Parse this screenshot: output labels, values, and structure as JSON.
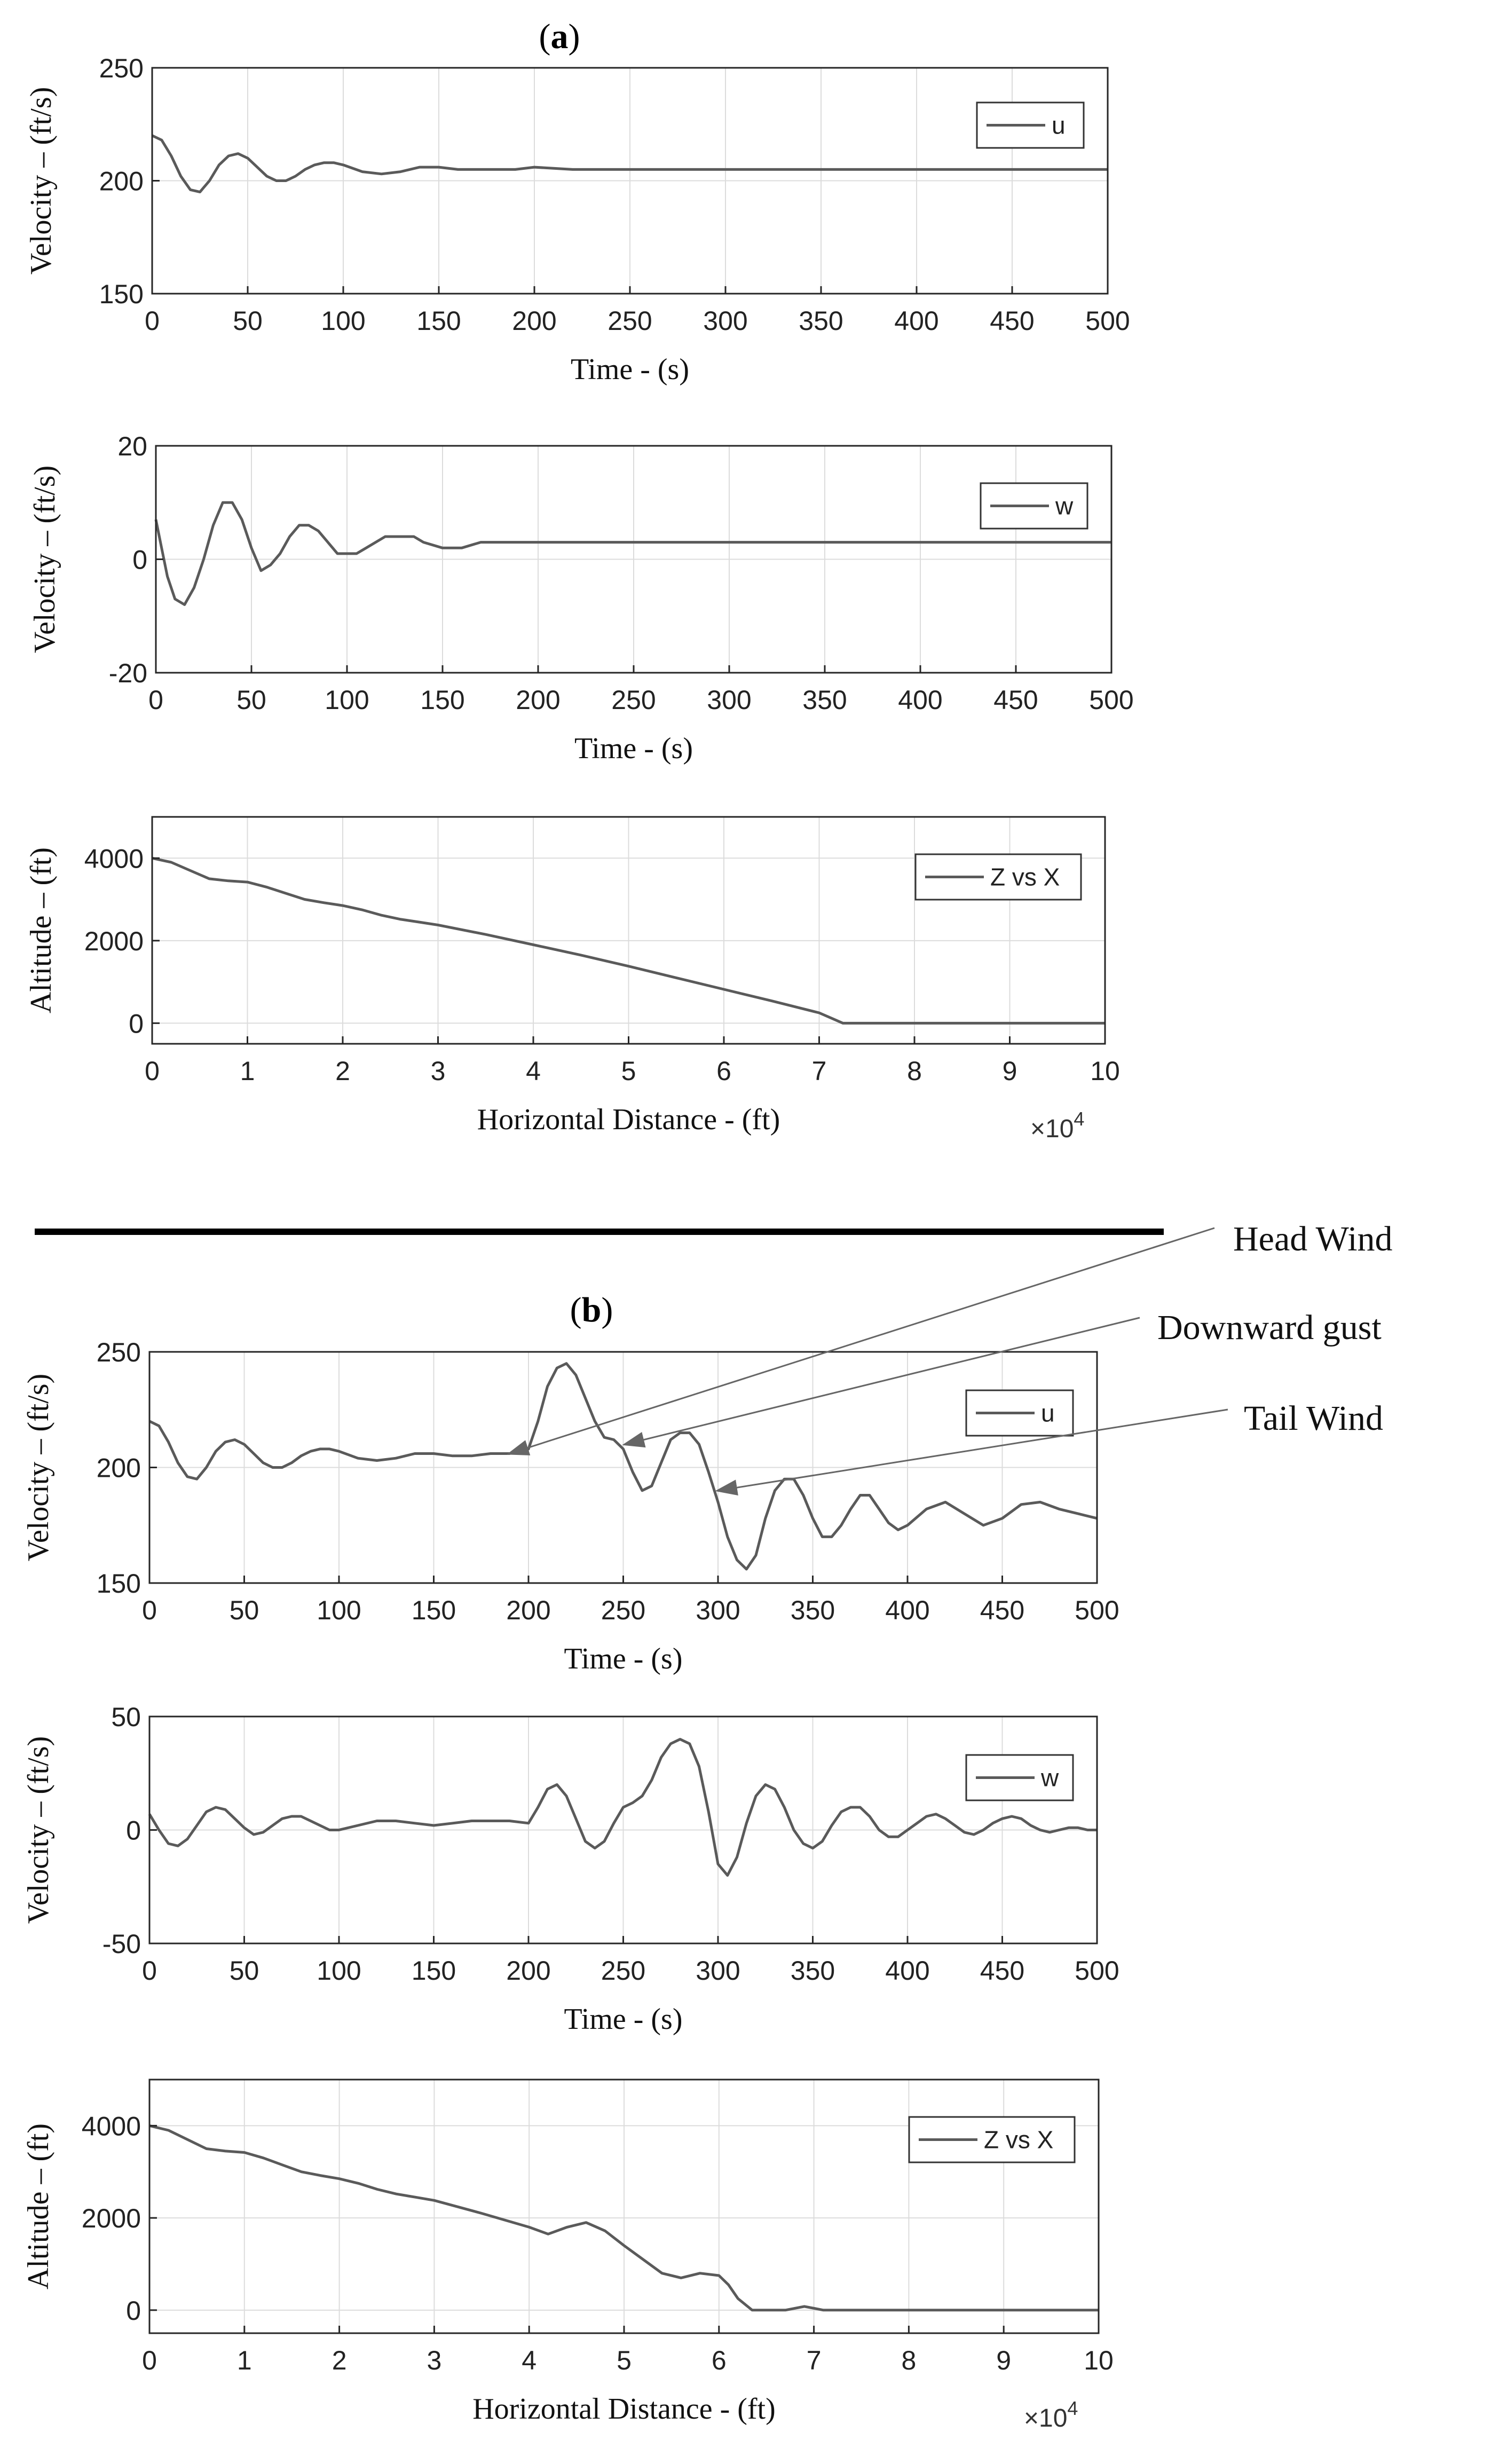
{
  "figure": {
    "panel_a_label": "a",
    "panel_b_label": "b",
    "annotations": [
      {
        "text": "Head Wind",
        "target_x": 190,
        "target_y": 206
      },
      {
        "text": "Downward gust",
        "target_x": 251,
        "target_y": 210
      },
      {
        "text": "Tail Wind",
        "target_x": 300,
        "target_y": 190
      }
    ],
    "colors": {
      "line": "#5a5a5a",
      "axis": "#262626",
      "grid": "#dcdcdc",
      "divider": "#000000"
    }
  },
  "chart_data": [
    {
      "panel": "a",
      "type": "line",
      "title": "",
      "xlabel": "Time - (s)",
      "ylabel": "Velocity – (ft/s)",
      "xlim": [
        0,
        500
      ],
      "ylim": [
        150,
        250
      ],
      "xticks": [
        0,
        50,
        100,
        150,
        200,
        250,
        300,
        350,
        400,
        450,
        500
      ],
      "yticks": [
        150,
        200,
        250
      ],
      "grid": true,
      "legend_position": "top-right",
      "exponent_label": "",
      "series": [
        {
          "name": "u",
          "x": [
            0,
            5,
            10,
            15,
            20,
            25,
            30,
            35,
            40,
            45,
            50,
            55,
            60,
            65,
            70,
            75,
            80,
            85,
            90,
            95,
            100,
            110,
            120,
            130,
            140,
            150,
            160,
            170,
            180,
            190,
            200,
            220,
            240,
            260,
            280,
            300,
            350,
            400,
            450,
            500
          ],
          "y": [
            220,
            218,
            211,
            202,
            196,
            195,
            200,
            207,
            211,
            212,
            210,
            206,
            202,
            200,
            200,
            202,
            205,
            207,
            208,
            208,
            207,
            204,
            203,
            204,
            206,
            206,
            205,
            205,
            205,
            205,
            206,
            205,
            205,
            205,
            205,
            205,
            205,
            205,
            205,
            205
          ]
        }
      ]
    },
    {
      "panel": "a",
      "type": "line",
      "title": "",
      "xlabel": "Time - (s)",
      "ylabel": "Velocity – (ft/s)",
      "xlim": [
        0,
        500
      ],
      "ylim": [
        -20,
        20
      ],
      "xticks": [
        0,
        50,
        100,
        150,
        200,
        250,
        300,
        350,
        400,
        450,
        500
      ],
      "yticks": [
        -20,
        0,
        20
      ],
      "grid": true,
      "legend_position": "top-right",
      "exponent_label": "",
      "series": [
        {
          "name": "w",
          "x": [
            0,
            3,
            6,
            10,
            15,
            20,
            25,
            30,
            35,
            40,
            45,
            50,
            55,
            60,
            65,
            70,
            75,
            80,
            85,
            90,
            95,
            100,
            105,
            110,
            120,
            130,
            135,
            140,
            150,
            160,
            170,
            180,
            190,
            200,
            210,
            220,
            240,
            260,
            280,
            300,
            350,
            400,
            450,
            500
          ],
          "y": [
            7,
            2,
            -3,
            -7,
            -8,
            -5,
            0,
            6,
            10,
            10,
            7,
            2,
            -2,
            -1,
            1,
            4,
            6,
            6,
            5,
            3,
            1,
            1,
            1,
            2,
            4,
            4,
            4,
            3,
            2,
            2,
            3,
            3,
            3,
            3,
            3,
            3,
            3,
            3,
            3,
            3,
            3,
            3,
            3,
            3
          ]
        }
      ]
    },
    {
      "panel": "a",
      "type": "line",
      "title": "",
      "xlabel": "Horizontal Distance - (ft)",
      "ylabel": "Altitude – (ft)",
      "xlim": [
        0,
        10
      ],
      "ylim": [
        -500,
        5000
      ],
      "xticks": [
        0,
        1,
        2,
        3,
        4,
        5,
        6,
        7,
        8,
        9,
        10
      ],
      "yticks": [
        0,
        2000,
        4000
      ],
      "grid": true,
      "legend_position": "top-right",
      "exponent_label": "×10",
      "exponent_power": "4",
      "series": [
        {
          "name": "Z vs X",
          "x": [
            0,
            0.2,
            0.4,
            0.6,
            0.8,
            1.0,
            1.2,
            1.4,
            1.6,
            1.8,
            2.0,
            2.2,
            2.4,
            2.6,
            2.8,
            3.0,
            3.5,
            4.0,
            4.5,
            5.0,
            5.5,
            6.0,
            6.5,
            7.0,
            7.25,
            7.5,
            8.0,
            9.0,
            10.0
          ],
          "y": [
            4000,
            3900,
            3700,
            3500,
            3450,
            3420,
            3300,
            3150,
            3000,
            2920,
            2850,
            2750,
            2620,
            2520,
            2450,
            2380,
            2150,
            1900,
            1650,
            1380,
            1100,
            820,
            540,
            250,
            0,
            0,
            0,
            0,
            0
          ]
        }
      ]
    },
    {
      "panel": "b",
      "type": "line",
      "title": "",
      "xlabel": "Time - (s)",
      "ylabel": "Velocity – (ft/s)",
      "xlim": [
        0,
        500
      ],
      "ylim": [
        150,
        250
      ],
      "xticks": [
        0,
        50,
        100,
        150,
        200,
        250,
        300,
        350,
        400,
        450,
        500
      ],
      "yticks": [
        150,
        200,
        250
      ],
      "grid": true,
      "legend_position": "top-right",
      "exponent_label": "",
      "series": [
        {
          "name": "u",
          "x": [
            0,
            5,
            10,
            15,
            20,
            25,
            30,
            35,
            40,
            45,
            50,
            55,
            60,
            65,
            70,
            75,
            80,
            85,
            90,
            95,
            100,
            110,
            120,
            130,
            140,
            150,
            160,
            170,
            180,
            190,
            200,
            205,
            210,
            215,
            220,
            225,
            230,
            235,
            240,
            245,
            250,
            255,
            260,
            265,
            270,
            275,
            280,
            285,
            290,
            295,
            300,
            305,
            310,
            315,
            320,
            325,
            330,
            335,
            340,
            345,
            350,
            355,
            360,
            365,
            370,
            375,
            380,
            385,
            390,
            395,
            400,
            410,
            420,
            430,
            440,
            450,
            460,
            470,
            480,
            490,
            500
          ],
          "y": [
            220,
            218,
            211,
            202,
            196,
            195,
            200,
            207,
            211,
            212,
            210,
            206,
            202,
            200,
            200,
            202,
            205,
            207,
            208,
            208,
            207,
            204,
            203,
            204,
            206,
            206,
            205,
            205,
            206,
            206,
            208,
            220,
            235,
            243,
            245,
            240,
            230,
            220,
            213,
            212,
            208,
            198,
            190,
            192,
            202,
            212,
            215,
            215,
            210,
            198,
            185,
            170,
            160,
            156,
            162,
            178,
            190,
            195,
            195,
            188,
            178,
            170,
            170,
            175,
            182,
            188,
            188,
            182,
            176,
            173,
            175,
            182,
            185,
            180,
            175,
            178,
            184,
            185,
            182,
            180,
            178
          ]
        }
      ]
    },
    {
      "panel": "b",
      "type": "line",
      "title": "",
      "xlabel": "Time - (s)",
      "ylabel": "Velocity – (ft/s)",
      "xlim": [
        0,
        500
      ],
      "ylim": [
        -50,
        50
      ],
      "xticks": [
        0,
        50,
        100,
        150,
        200,
        250,
        300,
        350,
        400,
        450,
        500
      ],
      "yticks": [
        -50,
        0,
        50
      ],
      "grid": true,
      "legend_position": "top-right",
      "exponent_label": "",
      "series": [
        {
          "name": "w",
          "x": [
            0,
            5,
            10,
            15,
            20,
            25,
            30,
            35,
            40,
            45,
            50,
            55,
            60,
            65,
            70,
            75,
            80,
            85,
            90,
            95,
            100,
            110,
            120,
            130,
            140,
            150,
            160,
            170,
            180,
            190,
            200,
            205,
            210,
            215,
            220,
            225,
            230,
            235,
            240,
            245,
            250,
            255,
            260,
            265,
            270,
            275,
            280,
            285,
            290,
            295,
            300,
            305,
            310,
            315,
            320,
            325,
            330,
            335,
            340,
            345,
            350,
            355,
            360,
            365,
            370,
            375,
            380,
            385,
            390,
            395,
            400,
            405,
            410,
            415,
            420,
            425,
            430,
            435,
            440,
            445,
            450,
            455,
            460,
            465,
            470,
            475,
            480,
            485,
            490,
            495,
            500
          ],
          "y": [
            7,
            0,
            -6,
            -7,
            -4,
            2,
            8,
            10,
            9,
            5,
            1,
            -2,
            -1,
            2,
            5,
            6,
            6,
            4,
            2,
            0,
            0,
            2,
            4,
            4,
            3,
            2,
            3,
            4,
            4,
            4,
            3,
            10,
            18,
            20,
            15,
            5,
            -5,
            -8,
            -5,
            3,
            10,
            12,
            15,
            22,
            32,
            38,
            40,
            38,
            28,
            8,
            -15,
            -20,
            -12,
            3,
            15,
            20,
            18,
            10,
            0,
            -6,
            -8,
            -5,
            2,
            8,
            10,
            10,
            6,
            0,
            -3,
            -3,
            0,
            3,
            6,
            7,
            5,
            2,
            -1,
            -2,
            0,
            3,
            5,
            6,
            5,
            2,
            0,
            -1,
            0,
            1,
            1,
            0,
            0
          ]
        }
      ]
    },
    {
      "panel": "b",
      "type": "line",
      "title": "",
      "xlabel": "Horizontal Distance - (ft)",
      "ylabel": "Altitude – (ft)",
      "xlim": [
        0,
        10
      ],
      "ylim": [
        -500,
        5000
      ],
      "xticks": [
        0,
        1,
        2,
        3,
        4,
        5,
        6,
        7,
        8,
        9,
        10
      ],
      "yticks": [
        0,
        2000,
        4000
      ],
      "grid": true,
      "legend_position": "top-right",
      "exponent_label": "×10",
      "exponent_power": "4",
      "series": [
        {
          "name": "Z vs X",
          "x": [
            0,
            0.2,
            0.4,
            0.6,
            0.8,
            1.0,
            1.2,
            1.4,
            1.6,
            1.8,
            2.0,
            2.2,
            2.4,
            2.6,
            2.8,
            3.0,
            3.5,
            4.0,
            4.2,
            4.4,
            4.6,
            4.8,
            5.0,
            5.2,
            5.4,
            5.6,
            5.8,
            6.0,
            6.1,
            6.2,
            6.35,
            6.5,
            6.7,
            6.9,
            7.1,
            7.5,
            8.0,
            9.0,
            10.0
          ],
          "y": [
            4000,
            3900,
            3700,
            3500,
            3450,
            3420,
            3300,
            3150,
            3000,
            2920,
            2850,
            2750,
            2620,
            2520,
            2450,
            2380,
            2100,
            1800,
            1650,
            1800,
            1900,
            1720,
            1400,
            1100,
            800,
            700,
            800,
            750,
            550,
            250,
            0,
            0,
            0,
            80,
            0,
            0,
            0,
            0,
            0
          ]
        }
      ]
    }
  ]
}
